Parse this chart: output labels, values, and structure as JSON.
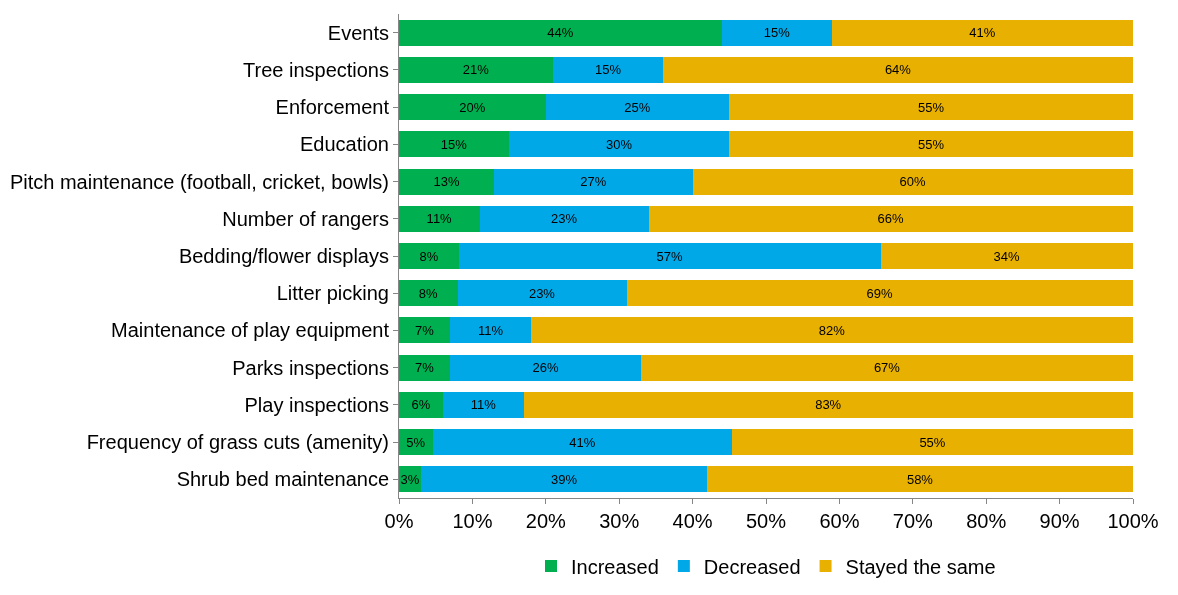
{
  "chart_data": {
    "type": "bar",
    "orientation": "horizontal",
    "stacked": true,
    "categories": [
      "Events",
      "Tree inspections",
      "Enforcement",
      "Education",
      "Pitch maintenance (football, cricket, bowls)",
      "Number of rangers",
      "Bedding/flower displays",
      "Litter picking",
      "Maintenance of play equipment",
      "Parks inspections",
      "Play inspections",
      "Frequency of grass cuts (amenity)",
      "Shrub bed maintenance"
    ],
    "series": [
      {
        "name": "Increased",
        "color": "#00b050",
        "values": [
          44,
          21,
          20,
          15,
          13,
          11,
          8.2,
          8,
          7,
          7,
          6,
          4.6,
          3
        ],
        "value_labels": [
          "44%",
          "21%",
          "20%",
          "15%",
          "13%",
          "11%",
          "8%",
          "8%",
          "7%",
          "7%",
          "6%",
          "5%",
          "3%"
        ]
      },
      {
        "name": "Decreased",
        "color": "#00a8e8",
        "values": [
          15,
          15,
          25,
          30,
          27,
          23,
          57.4,
          23,
          11,
          26,
          11,
          40.8,
          39
        ],
        "value_labels": [
          "15%",
          "15%",
          "25%",
          "30%",
          "27%",
          "23%",
          "57%",
          "23%",
          "11%",
          "26%",
          "11%",
          "41%",
          "39%"
        ]
      },
      {
        "name": "Stayed the same",
        "color": "#e8b000",
        "values": [
          41,
          64,
          55,
          55,
          60,
          66,
          34.4,
          69,
          82,
          67,
          83,
          54.6,
          58
        ],
        "value_labels": [
          "41%",
          "64%",
          "55%",
          "55%",
          "60%",
          "66%",
          "34%",
          "69%",
          "82%",
          "67%",
          "83%",
          "55%",
          "58%"
        ]
      }
    ],
    "xlim": [
      0,
      100
    ],
    "xticks": [
      {
        "value": 0,
        "label": "0%"
      },
      {
        "value": 10,
        "label": "10%"
      },
      {
        "value": 20,
        "label": "20%"
      },
      {
        "value": 30,
        "label": "30%"
      },
      {
        "value": 40,
        "label": "40%"
      },
      {
        "value": 50,
        "label": "50%"
      },
      {
        "value": 60,
        "label": "60%"
      },
      {
        "value": 70,
        "label": "70%"
      },
      {
        "value": 80,
        "label": "80%"
      },
      {
        "value": 90,
        "label": "90%"
      },
      {
        "value": 100,
        "label": "100%"
      }
    ],
    "legend": "bottom"
  }
}
